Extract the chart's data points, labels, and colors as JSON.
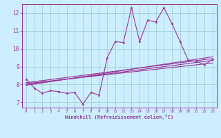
{
  "bg_color": "#cceeff",
  "line_color": "#993399",
  "grid_color": "#99cccc",
  "xlabel": "Windchill (Refroidissement éolien,°C)",
  "xlim": [
    -0.5,
    23.5
  ],
  "ylim": [
    6.7,
    12.5
  ],
  "yticks": [
    7,
    8,
    9,
    10,
    11,
    12
  ],
  "xticks": [
    0,
    1,
    2,
    3,
    4,
    5,
    6,
    7,
    8,
    9,
    10,
    11,
    12,
    13,
    14,
    15,
    16,
    17,
    18,
    19,
    20,
    21,
    22,
    23
  ],
  "scatter_x": [
    0,
    1,
    2,
    3,
    4,
    5,
    6,
    7,
    8,
    9,
    10,
    11,
    12,
    13,
    14,
    15,
    16,
    17,
    18,
    19,
    20,
    21,
    22,
    23
  ],
  "scatter_y": [
    8.3,
    7.8,
    7.5,
    7.65,
    7.6,
    7.5,
    7.55,
    6.9,
    7.55,
    7.4,
    9.5,
    10.4,
    10.35,
    12.3,
    10.4,
    11.6,
    11.5,
    12.3,
    11.4,
    10.4,
    9.35,
    9.3,
    9.1,
    9.4
  ],
  "line1_x": [
    0,
    23
  ],
  "line1_y": [
    8.0,
    9.35
  ],
  "line2_x": [
    0,
    23
  ],
  "line2_y": [
    7.95,
    9.55
  ],
  "line3_x": [
    0,
    23
  ],
  "line3_y": [
    8.05,
    9.2
  ],
  "line4_x": [
    0,
    23
  ],
  "line4_y": [
    8.1,
    9.45
  ],
  "tick_color": "#993399",
  "label_color": "#993399",
  "marker_size": 2.5,
  "line_width": 0.8,
  "xlabel_fontsize": 5.0,
  "xlabel_fontweight": "bold",
  "ytick_fontsize": 5.5,
  "xtick_fontsize": 4.2
}
